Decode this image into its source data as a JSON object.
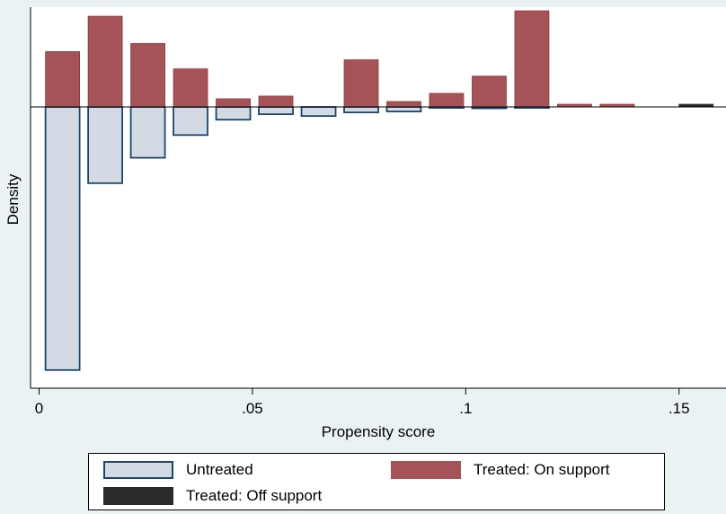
{
  "colors": {
    "background": "#eaf2f3",
    "plot_background": "#ffffff",
    "untreated_fill": "#d3dae3",
    "untreated_stroke": "#1a476f",
    "treated_on_fill": "#a65358",
    "treated_on_stroke": "#90353b",
    "treated_off_fill": "#2b2b2b"
  },
  "chart_data": {
    "type": "bar",
    "subtype": "mirrored-histogram",
    "xlabel": "Propensity score",
    "ylabel": "Density",
    "xlim": [
      -0.002,
      0.161
    ],
    "ylim": [
      -31,
      11
    ],
    "x_ticks": [
      {
        "value": 0,
        "label": "0"
      },
      {
        "value": 0.05,
        "label": ".05"
      },
      {
        "value": 0.1,
        "label": ".1"
      },
      {
        "value": 0.15,
        "label": ".15"
      }
    ],
    "y_ticks_labeled": false,
    "grid": false,
    "legend_position": "bottom",
    "bin_width": 0.01,
    "series": [
      {
        "name": "Untreated",
        "side": "below",
        "bins": [
          {
            "x": 0.0015,
            "density": -29.0
          },
          {
            "x": 0.0115,
            "density": -8.4
          },
          {
            "x": 0.0215,
            "density": -5.6
          },
          {
            "x": 0.0315,
            "density": -3.1
          },
          {
            "x": 0.0415,
            "density": -1.4
          },
          {
            "x": 0.0515,
            "density": -0.8
          },
          {
            "x": 0.0615,
            "density": -1.0
          },
          {
            "x": 0.0715,
            "density": -0.6
          },
          {
            "x": 0.0815,
            "density": -0.5
          },
          {
            "x": 0.0915,
            "density": -0.1
          },
          {
            "x": 0.1015,
            "density": -0.15
          },
          {
            "x": 0.1115,
            "density": -0.1
          }
        ]
      },
      {
        "name": "Treated: On support",
        "side": "above",
        "bins": [
          {
            "x": 0.0015,
            "density": 6.1
          },
          {
            "x": 0.0115,
            "density": 10.0
          },
          {
            "x": 0.0215,
            "density": 7.0
          },
          {
            "x": 0.0315,
            "density": 4.2
          },
          {
            "x": 0.0415,
            "density": 0.9
          },
          {
            "x": 0.0515,
            "density": 1.2
          },
          {
            "x": 0.0715,
            "density": 5.2
          },
          {
            "x": 0.0815,
            "density": 0.6
          },
          {
            "x": 0.0915,
            "density": 1.5
          },
          {
            "x": 0.1015,
            "density": 3.4
          },
          {
            "x": 0.1115,
            "density": 10.6
          },
          {
            "x": 0.1215,
            "density": 0.3
          },
          {
            "x": 0.1315,
            "density": 0.3
          }
        ]
      },
      {
        "name": "Treated: Off support",
        "side": "above",
        "bins": [
          {
            "x": 0.15,
            "density": 0.3
          }
        ]
      }
    ]
  },
  "legend": {
    "untreated_label": "Untreated",
    "treated_on_label": "Treated: On support",
    "treated_off_label": "Treated: Off support"
  }
}
